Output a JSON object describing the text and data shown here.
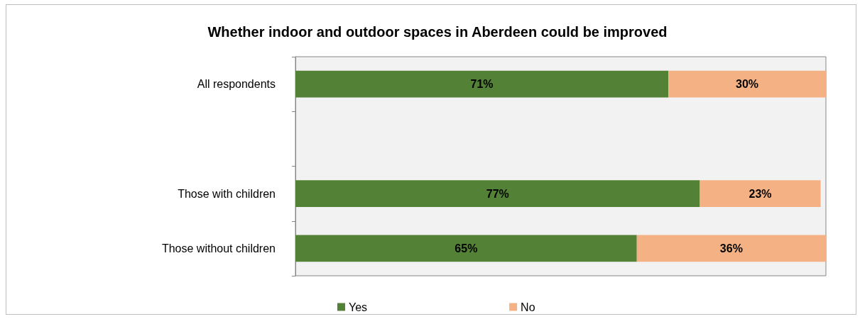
{
  "chart_data": {
    "type": "bar",
    "orientation": "horizontal",
    "stacked": true,
    "title": "Whether indoor and outdoor spaces in Aberdeen could be improved",
    "categories": [
      "All respondents",
      null,
      "Those with children",
      "Those without children"
    ],
    "series": [
      {
        "name": "Yes",
        "color": "#538135",
        "values": [
          71,
          null,
          77,
          65
        ],
        "value_labels": [
          "71%",
          null,
          "77%",
          "65%"
        ]
      },
      {
        "name": "No",
        "color": "#f4b183",
        "values": [
          30,
          null,
          23,
          36
        ],
        "value_labels": [
          "30%",
          null,
          "23%",
          "36%"
        ]
      }
    ],
    "tick_labels": "y",
    "legend": "bottom"
  }
}
